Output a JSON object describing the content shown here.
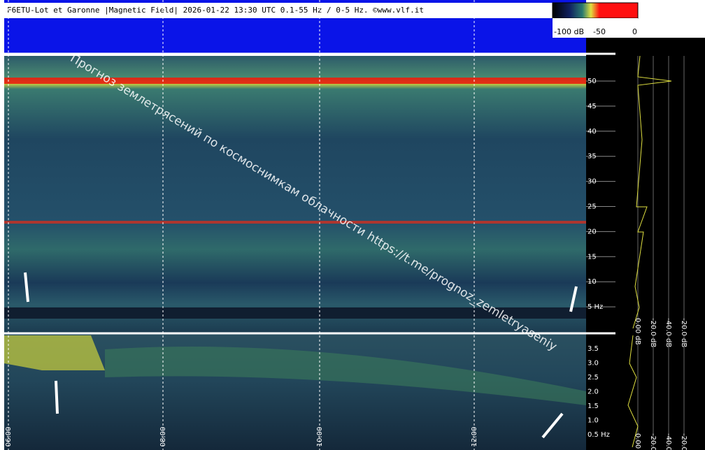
{
  "header": {
    "title": "F6ETU-Lot et Garonne |Magnetic Field| 2026-01-22 13:30 UTC 0.1-55 Hz / 0-5 Hz. ©www.vlf.it"
  },
  "colorbar": {
    "labels": [
      "-100 dB",
      "-50",
      "0"
    ]
  },
  "upper_axis": {
    "labels": [
      "50",
      "45",
      "40",
      "35",
      "30",
      "25",
      "20",
      "15",
      "10",
      "5 Hz"
    ]
  },
  "lower_axis": {
    "labels": [
      "3.5",
      "3.0",
      "2.5",
      "2.0",
      "1.5",
      "1.0",
      "0.5 Hz"
    ]
  },
  "time_axis": {
    "labels": [
      "06:00",
      "08:00",
      "10:00",
      "12:00"
    ]
  },
  "side_panel": {
    "labels": [
      "0.00 dB",
      "-20.0 dB",
      "-40.0 dB",
      "-20.0 dB"
    ]
  },
  "watermark": {
    "text": "Прогноз землетрясений по космоснимкам облачности  https://t.me/prognoz_zemletryaseniy"
  }
}
